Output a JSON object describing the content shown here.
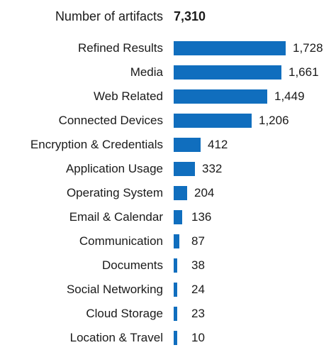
{
  "summary": {
    "label": "Number of artifacts",
    "value": "7,310"
  },
  "colors": {
    "bar": "#106ebe",
    "text": "#1a1a1a"
  },
  "chart_data": {
    "type": "bar",
    "orientation": "horizontal",
    "categories": [
      "Refined Results",
      "Media",
      "Web Related",
      "Connected Devices",
      "Encryption & Credentials",
      "Application Usage",
      "Operating System",
      "Email & Calendar",
      "Communication",
      "Documents",
      "Social Networking",
      "Cloud Storage",
      "Location & Travel"
    ],
    "values": [
      1728,
      1661,
      1449,
      1206,
      412,
      332,
      204,
      136,
      87,
      38,
      24,
      23,
      10
    ],
    "value_labels": [
      "1,728",
      "1,661",
      "1,449",
      "1,206",
      "412",
      "332",
      "204",
      "136",
      "87",
      "38",
      "24",
      "23",
      "10"
    ],
    "xlim": [
      0,
      1728
    ],
    "grid": false,
    "legend": "none"
  }
}
